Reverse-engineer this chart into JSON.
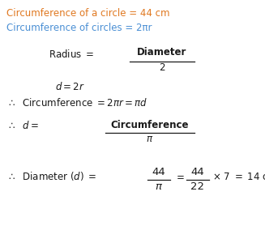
{
  "bg_color": "#ffffff",
  "line1_text": "Circumference of a circle = 44 cm",
  "line1_color": "#e07820",
  "line2_text": "Circumference of circles = 2πr",
  "line2_color": "#4a8fd4",
  "text_color": "#1a1a1a",
  "figsize": [
    3.27,
    2.84
  ],
  "dpi": 100
}
